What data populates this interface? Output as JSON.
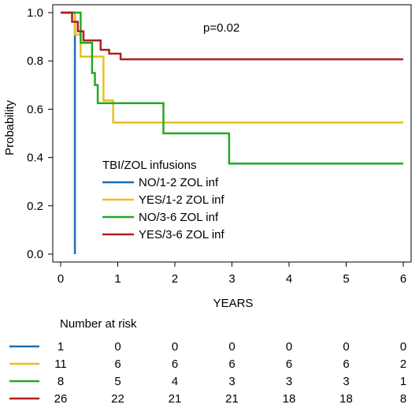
{
  "chart_data": {
    "type": "line",
    "subtype": "kaplan-meier step",
    "annotation": "p=0.02",
    "xlabel": "YEARS",
    "ylabel": "Probability",
    "xlim": [
      0,
      6
    ],
    "ylim": [
      0,
      1
    ],
    "x_ticks": [
      "0",
      "1",
      "2",
      "3",
      "4",
      "5",
      "6"
    ],
    "y_ticks": [
      "0.0",
      "0.2",
      "0.4",
      "0.6",
      "0.8",
      "1.0"
    ],
    "legend": {
      "title": "TBI/ZOL infusions",
      "placement": "lower-left"
    },
    "series": [
      {
        "name": "NO/1-2 ZOL inf",
        "color": "#1f6eb5",
        "x": [
          0,
          0.25,
          0.25
        ],
        "y": [
          1.0,
          1.0,
          0.0
        ]
      },
      {
        "name": "YES/1-2 ZOL inf",
        "color": "#e6c01e",
        "x": [
          0,
          0.25,
          0.25,
          0.35,
          0.35,
          0.75,
          0.75,
          0.92,
          0.92,
          6.0
        ],
        "y": [
          1.0,
          1.0,
          0.909,
          0.909,
          0.818,
          0.818,
          0.636,
          0.636,
          0.545,
          0.545
        ]
      },
      {
        "name": "NO/3-6 ZOL inf",
        "color": "#22aa22",
        "x": [
          0,
          0.35,
          0.35,
          0.45,
          0.45,
          0.55,
          0.55,
          0.6,
          0.6,
          0.65,
          0.65,
          1.8,
          1.8,
          2.95,
          2.95,
          6.0
        ],
        "y": [
          1.0,
          1.0,
          0.875,
          0.875,
          0.875,
          0.875,
          0.75,
          0.75,
          0.7,
          0.7,
          0.625,
          0.625,
          0.5,
          0.5,
          0.375,
          0.375
        ]
      },
      {
        "name": "YES/3-6 ZOL inf",
        "color": "#b01e1e",
        "x": [
          0,
          0.2,
          0.2,
          0.3,
          0.3,
          0.4,
          0.4,
          0.55,
          0.55,
          0.7,
          0.7,
          0.85,
          0.85,
          1.05,
          1.05,
          6.0
        ],
        "y": [
          1.0,
          1.0,
          0.962,
          0.962,
          0.923,
          0.923,
          0.885,
          0.885,
          0.885,
          0.885,
          0.846,
          0.846,
          0.83,
          0.83,
          0.807,
          0.807
        ]
      }
    ],
    "risk_table": {
      "title": "Number at risk",
      "times": [
        0,
        1,
        2,
        3,
        4,
        5,
        6
      ],
      "rows": [
        {
          "color": "#1f6eb5",
          "values": [
            "1",
            "0",
            "0",
            "0",
            "0",
            "0",
            "0"
          ]
        },
        {
          "color": "#e6c01e",
          "values": [
            "11",
            "6",
            "6",
            "6",
            "6",
            "6",
            "2"
          ]
        },
        {
          "color": "#22aa22",
          "values": [
            "8",
            "5",
            "4",
            "3",
            "3",
            "3",
            "1"
          ]
        },
        {
          "color": "#b01e1e",
          "values": [
            "26",
            "22",
            "21",
            "21",
            "18",
            "18",
            "8"
          ]
        }
      ]
    }
  }
}
